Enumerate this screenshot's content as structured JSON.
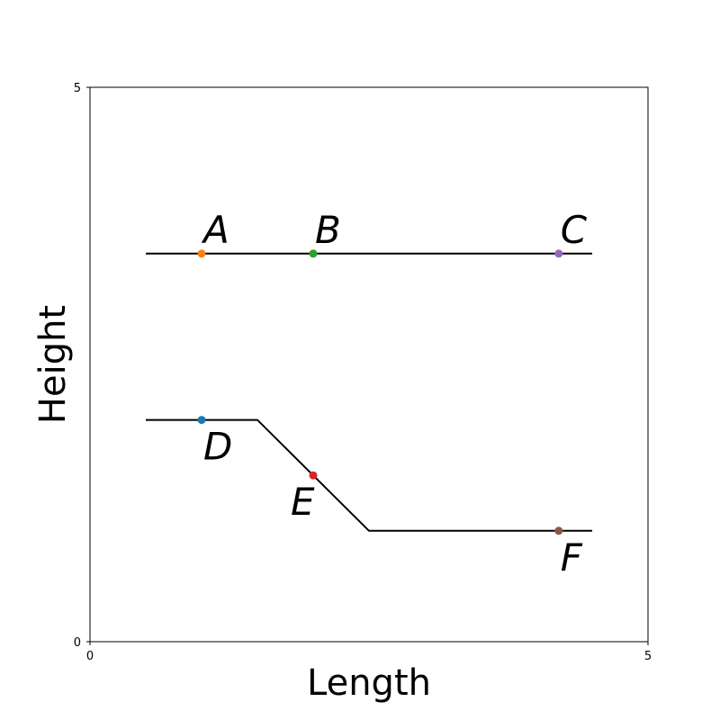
{
  "chart_data": {
    "type": "line",
    "title": "",
    "xlabel": "Length",
    "ylabel": "Height",
    "xlim": [
      0,
      5
    ],
    "ylim": [
      0,
      5
    ],
    "xticks": [
      "0",
      "5"
    ],
    "yticks": [
      "0",
      "5"
    ],
    "grid": false,
    "lines": [
      {
        "color": "#000000",
        "x": [
          0.5,
          4.5
        ],
        "y": [
          3.5,
          3.5
        ]
      },
      {
        "color": "#000000",
        "x": [
          0.5,
          1.5,
          2.5,
          4.5
        ],
        "y": [
          2.0,
          2.0,
          1.0,
          1.0
        ]
      }
    ],
    "points": [
      {
        "label": "A",
        "x": 1.0,
        "y": 3.5,
        "color": "#ff7f0e",
        "label_pos": "above"
      },
      {
        "label": "B",
        "x": 2.0,
        "y": 3.5,
        "color": "#2ca02c",
        "label_pos": "above"
      },
      {
        "label": "C",
        "x": 4.2,
        "y": 3.5,
        "color": "#9467bd",
        "label_pos": "above"
      },
      {
        "label": "D",
        "x": 1.0,
        "y": 2.0,
        "color": "#1f77b4",
        "label_pos": "below"
      },
      {
        "label": "E",
        "x": 2.0,
        "y": 1.5,
        "color": "#d62728",
        "label_pos": "below-left"
      },
      {
        "label": "F",
        "x": 4.2,
        "y": 1.0,
        "color": "#8c564b",
        "label_pos": "below"
      }
    ]
  }
}
